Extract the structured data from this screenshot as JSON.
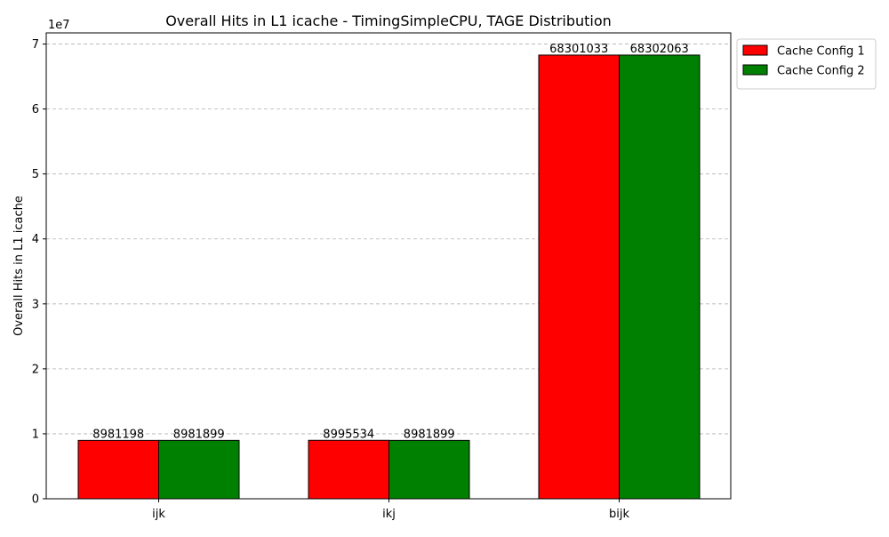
{
  "chart_data": {
    "type": "bar",
    "title": "Overall Hits in L1 icache - TimingSimpleCPU, TAGE Distribution",
    "xlabel": "",
    "ylabel": "Overall Hits in L1 icache",
    "y_offset_label": "1e7",
    "categories": [
      "ijk",
      "ikj",
      "bijk"
    ],
    "series": [
      {
        "name": "Cache Config 1",
        "color": "#ff0000",
        "values": [
          8981198,
          8995534,
          68301033
        ]
      },
      {
        "name": "Cache Config 2",
        "color": "#008000",
        "values": [
          8981899,
          8981899,
          68302063
        ]
      }
    ],
    "ylim": [
      0,
      71716166
    ],
    "yticks": [
      0,
      10000000,
      20000000,
      30000000,
      40000000,
      50000000,
      60000000,
      70000000
    ],
    "ytick_labels": [
      "0",
      "1",
      "2",
      "3",
      "4",
      "5",
      "6",
      "7"
    ],
    "grid": "y-dashed",
    "legend": "upper-right-outside"
  }
}
